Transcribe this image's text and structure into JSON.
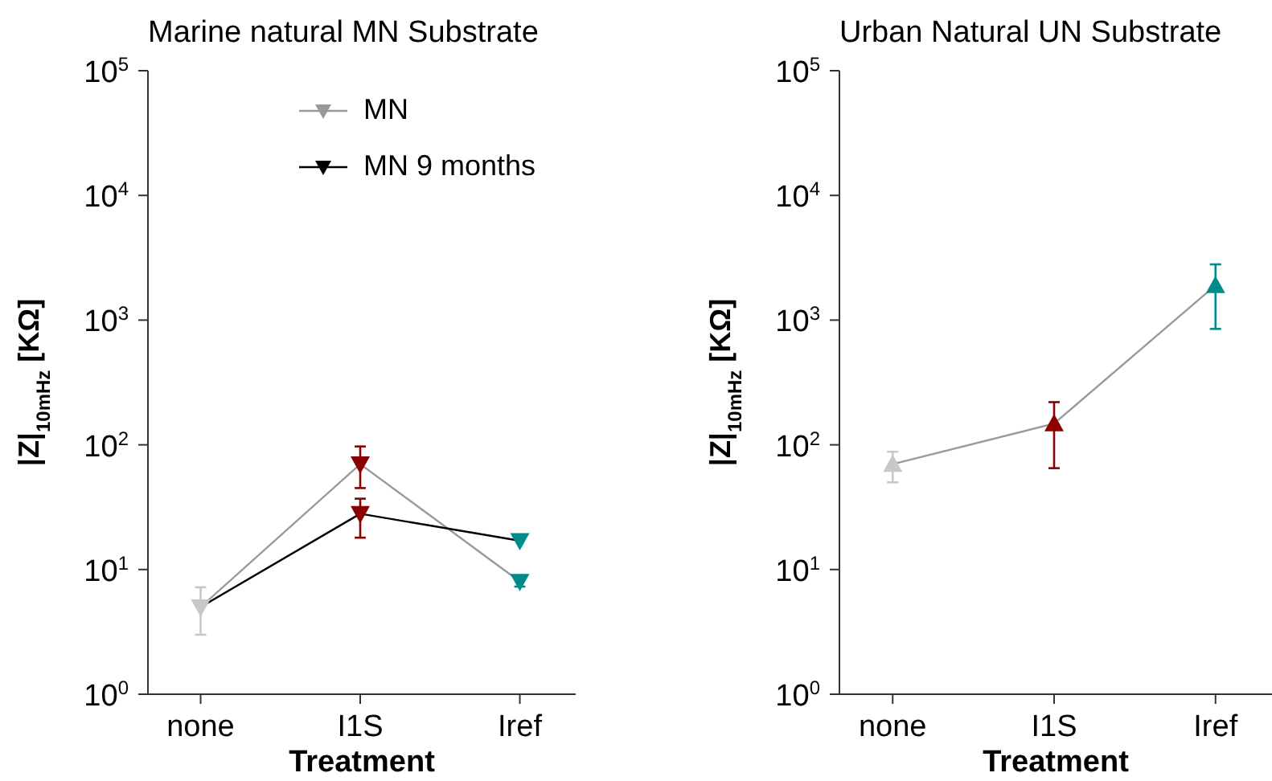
{
  "chart_data": [
    {
      "type": "line",
      "title": "Marine natural MN Substrate",
      "xlabel": "Treatment",
      "ylabel": "|Z|$_{10mHz}$ [KΩ]",
      "categories": [
        "none",
        "I1S",
        "Iref"
      ],
      "log": "y",
      "ylim": [
        1,
        100000
      ],
      "yticks": [
        {
          "value": 1,
          "label": "10$^{0}$"
        },
        {
          "value": 10,
          "label": "10$^{1}$"
        },
        {
          "value": 100,
          "label": "10$^{2}$"
        },
        {
          "value": 1000,
          "label": "10$^{3}$"
        },
        {
          "value": 10000,
          "label": "10$^{4}$"
        },
        {
          "value": 100000,
          "label": "10$^{5}$"
        }
      ],
      "legend": "top",
      "marker": "triangle-down",
      "series": [
        {
          "name": "MN",
          "color": "#999999",
          "colors": [
            "#c8c8c8",
            "#8b0000",
            "#008b8b"
          ],
          "values": [
            5,
            70,
            8
          ],
          "errors": [
            [
              3,
              7.2
            ],
            [
              45,
              97
            ],
            [
              7.3,
              8.8
            ]
          ]
        },
        {
          "name": "MN 9 months",
          "color": "#000000",
          "colors": [
            "#c8c8c8",
            "#8b0000",
            "#008b8b"
          ],
          "values": [
            5,
            28,
            17
          ],
          "errors": [
            null,
            [
              18,
              37
            ],
            null
          ]
        }
      ]
    },
    {
      "type": "line",
      "title": "Urban Natural UN Substrate",
      "xlabel": "Treatment",
      "ylabel": "|Z|$_{10mHz}$ [KΩ]",
      "categories": [
        "none",
        "I1S",
        "Iref"
      ],
      "log": "y",
      "ylim": [
        1,
        100000
      ],
      "yticks": [
        {
          "value": 1,
          "label": "10$^{0}$"
        },
        {
          "value": 10,
          "label": "10$^{1}$"
        },
        {
          "value": 100,
          "label": "10$^{2}$"
        },
        {
          "value": 1000,
          "label": "10$^{3}$"
        },
        {
          "value": 10000,
          "label": "10$^{4}$"
        },
        {
          "value": 100000,
          "label": "10$^{5}$"
        }
      ],
      "marker": "triangle",
      "series": [
        {
          "color": "#999999",
          "colors": [
            "#c8c8c8",
            "#8b0000",
            "#008b8b"
          ],
          "values": [
            70,
            148,
            1900
          ],
          "errors": [
            [
              50,
              88
            ],
            [
              65,
              220
            ],
            [
              850,
              2800
            ]
          ]
        }
      ]
    }
  ]
}
